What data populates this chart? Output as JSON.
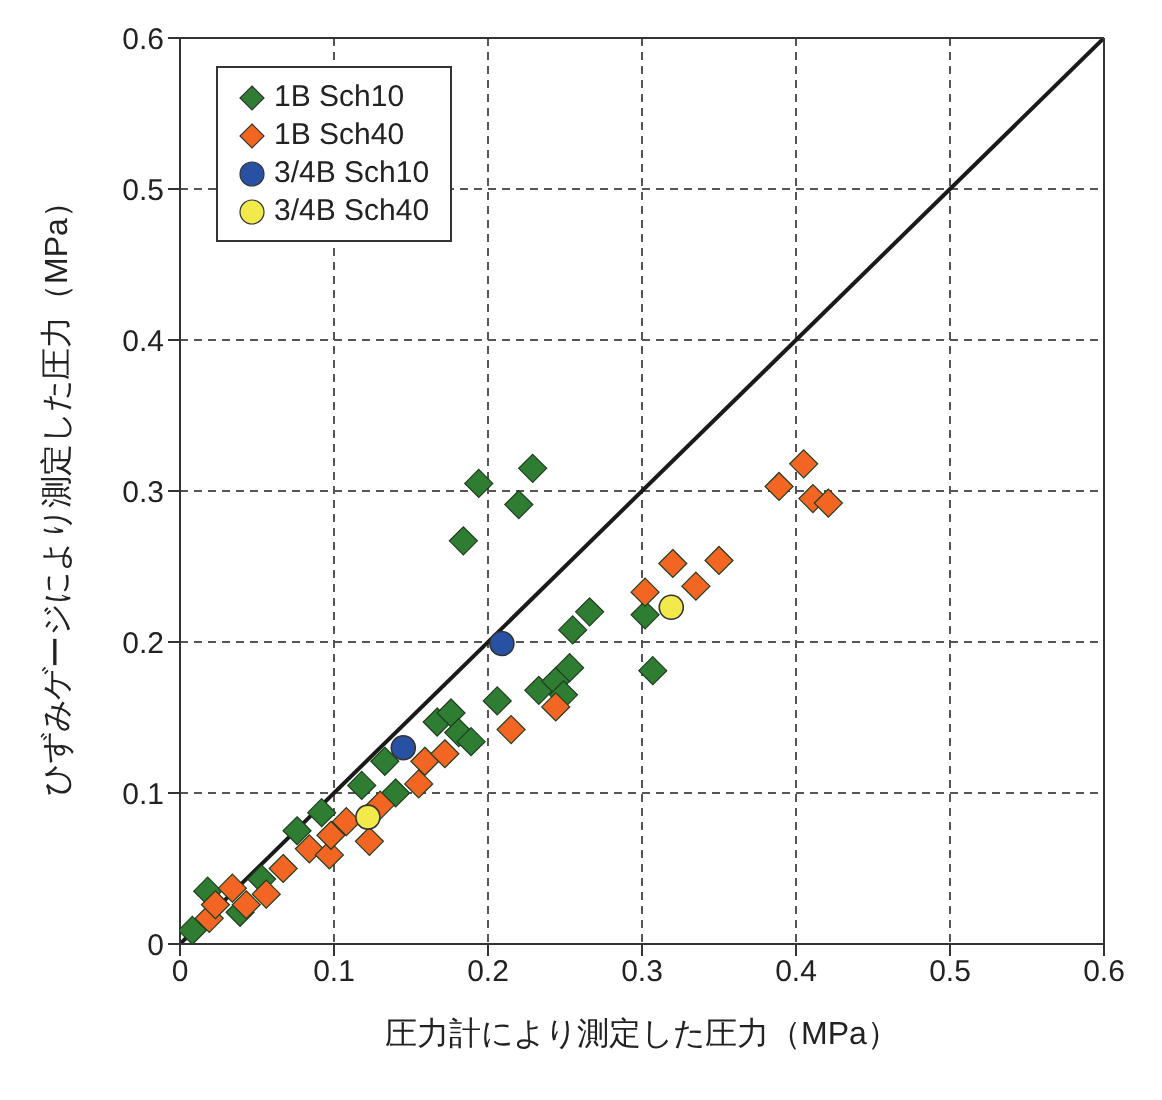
{
  "chart_data": {
    "type": "scatter",
    "xlabel": "圧力計により測定した圧力（MPa）",
    "ylabel": "ひずみゲージにより測定した圧力（MPa）",
    "xlim": [
      0,
      0.6
    ],
    "ylim": [
      0,
      0.6
    ],
    "xticks": [
      0,
      0.1,
      0.2,
      0.3,
      0.4,
      0.5,
      0.6
    ],
    "yticks": [
      0,
      0.1,
      0.2,
      0.3,
      0.4,
      0.5,
      0.6
    ],
    "grid": true,
    "legend": "top left",
    "series": [
      {
        "name": "1B Sch10",
        "color": "#2e7d32",
        "marker": "diamond",
        "x": [
          0.008,
          0.018,
          0.039,
          0.041,
          0.053,
          0.076,
          0.092,
          0.118,
          0.133,
          0.14,
          0.167,
          0.176,
          0.181,
          0.189,
          0.206,
          0.233,
          0.244,
          0.249,
          0.253,
          0.255,
          0.266,
          0.302,
          0.307,
          0.184,
          0.194,
          0.22,
          0.229
        ],
        "values": [
          0.009,
          0.035,
          0.021,
          null,
          0.043,
          0.075,
          0.087,
          0.105,
          0.121,
          0.1,
          0.147,
          0.153,
          0.14,
          0.134,
          0.161,
          0.168,
          0.174,
          0.165,
          0.183,
          0.208,
          0.22,
          0.218,
          0.181,
          0.267,
          0.305,
          0.291,
          0.315
        ]
      },
      {
        "name": "1B Sch40",
        "color": "#f26522",
        "marker": "diamond",
        "x": [
          0.019,
          0.023,
          0.034,
          0.043,
          0.056,
          0.067,
          0.084,
          0.097,
          0.098,
          0.108,
          0.123,
          0.13,
          0.155,
          0.159,
          0.172,
          0.215,
          0.244,
          0.302,
          0.32,
          0.335,
          0.35,
          0.389,
          0.405,
          0.411,
          0.421
        ],
        "values": [
          0.017,
          0.026,
          0.037,
          0.026,
          0.033,
          0.05,
          0.063,
          0.059,
          0.072,
          0.081,
          0.068,
          0.092,
          0.106,
          0.121,
          0.126,
          0.142,
          0.157,
          0.233,
          0.252,
          0.237,
          0.254,
          0.303,
          0.318,
          0.295,
          0.292
        ]
      },
      {
        "name": "3/4B Sch10",
        "color": "#2851a3",
        "marker": "circle",
        "x": [
          0.145,
          0.209
        ],
        "values": [
          0.13,
          0.199
        ]
      },
      {
        "name": "3/4B Sch40",
        "color": "#f2ea4b",
        "marker": "circle",
        "x": [
          0.122,
          0.319
        ],
        "values": [
          0.084,
          0.223
        ]
      },
      {
        "type": "line",
        "color": "#1a1a1a",
        "marker": "none",
        "x": [
          0,
          0.6
        ],
        "values": [
          0,
          0.6
        ]
      }
    ]
  }
}
